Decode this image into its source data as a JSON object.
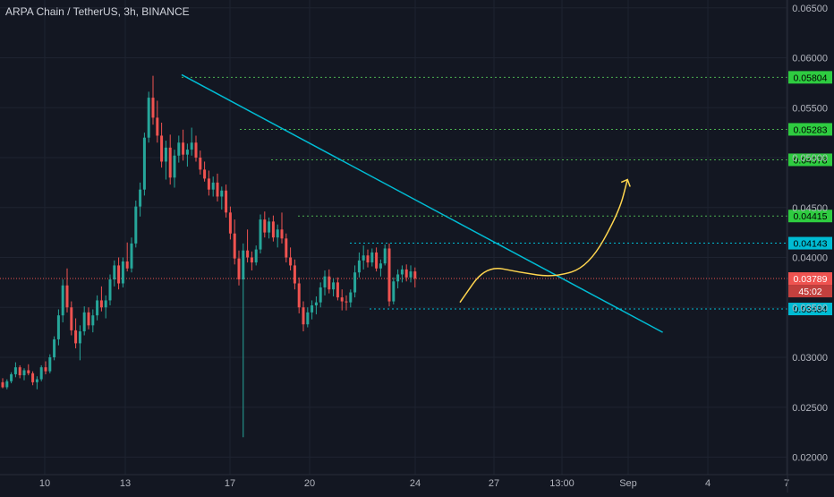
{
  "header": {
    "title": "ARPA Chain / TetherUS, 3h, BINANCE"
  },
  "colors": {
    "background": "#131722",
    "axis_text": "#b2b5be",
    "grid": "#1e2330",
    "up_candle": "#26a69a",
    "down_candle": "#ef5350",
    "trendline": "#00bcd4",
    "green_level": "#4caf50",
    "green_label": "#2ecc40",
    "cyan_level": "#00bcd4",
    "cyan_label": "#00bcd4",
    "current_price": "#ef5350",
    "projection_curve": "#ffd54f"
  },
  "chart_data": {
    "type": "candlestick",
    "title": "ARPA Chain / TetherUS, 3h, BINANCE",
    "symbol": "ARPA Chain / TetherUS",
    "interval": "3h",
    "exchange": "BINANCE",
    "y_axis_ticks": [
      "0.06500",
      "0.06000",
      "0.05500",
      "0.05000",
      "0.04500",
      "0.04000",
      "0.03500",
      "0.03000",
      "0.02500",
      "0.02000"
    ],
    "x_axis_ticks": [
      "10",
      "13",
      "17",
      "20",
      "24",
      "27",
      "13:00",
      "Sep",
      "4",
      "7"
    ],
    "ylim": [
      0.0196,
      0.0666
    ],
    "grid": true,
    "price_levels": [
      {
        "value": "0.05804",
        "style": "green"
      },
      {
        "value": "0.05283",
        "style": "green"
      },
      {
        "value": "0.04978",
        "style": "green"
      },
      {
        "value": "0.04415",
        "style": "green"
      },
      {
        "value": "0.04143",
        "style": "cyan"
      },
      {
        "value": "0.03484",
        "style": "cyan"
      }
    ],
    "current_price": {
      "value": "0.03789",
      "countdown": "45:02"
    },
    "trendline": {
      "from": {
        "bar": 0,
        "price": 0.0583
      },
      "to": {
        "bar": 112,
        "price": 0.0325
      }
    },
    "projection_path": [
      {
        "bar": 0,
        "price": 0.0355
      },
      {
        "bar": 6,
        "price": 0.0392
      },
      {
        "bar": 14,
        "price": 0.0385
      },
      {
        "bar": 22,
        "price": 0.038
      },
      {
        "bar": 30,
        "price": 0.0391
      },
      {
        "bar": 37,
        "price": 0.0445
      },
      {
        "bar": 39,
        "price": 0.0478
      }
    ],
    "ohlc": [
      [
        0.0275,
        0.0279,
        0.0269,
        0.027
      ],
      [
        0.027,
        0.0278,
        0.0268,
        0.0276
      ],
      [
        0.0276,
        0.0285,
        0.0274,
        0.0283
      ],
      [
        0.0283,
        0.0295,
        0.028,
        0.029
      ],
      [
        0.029,
        0.0292,
        0.0279,
        0.0282
      ],
      [
        0.0282,
        0.0289,
        0.0277,
        0.0287
      ],
      [
        0.0287,
        0.0293,
        0.0282,
        0.0284
      ],
      [
        0.0284,
        0.0286,
        0.0272,
        0.0275
      ],
      [
        0.0275,
        0.0281,
        0.0268,
        0.0278
      ],
      [
        0.0278,
        0.0292,
        0.0276,
        0.029
      ],
      [
        0.029,
        0.0296,
        0.0283,
        0.0286
      ],
      [
        0.0286,
        0.0303,
        0.0284,
        0.03
      ],
      [
        0.03,
        0.0321,
        0.0297,
        0.0318
      ],
      [
        0.0318,
        0.0348,
        0.0312,
        0.0342
      ],
      [
        0.0342,
        0.0378,
        0.0335,
        0.0372
      ],
      [
        0.0372,
        0.0389,
        0.0345,
        0.035
      ],
      [
        0.035,
        0.0356,
        0.0322,
        0.0327
      ],
      [
        0.0327,
        0.0339,
        0.0309,
        0.0314
      ],
      [
        0.0314,
        0.0332,
        0.0297,
        0.0326
      ],
      [
        0.0326,
        0.0351,
        0.0322,
        0.0345
      ],
      [
        0.0345,
        0.035,
        0.0328,
        0.0332
      ],
      [
        0.0332,
        0.0348,
        0.0325,
        0.0342
      ],
      [
        0.0342,
        0.0362,
        0.0337,
        0.0357
      ],
      [
        0.0357,
        0.0371,
        0.0346,
        0.035
      ],
      [
        0.035,
        0.0362,
        0.0339,
        0.0357
      ],
      [
        0.0357,
        0.0383,
        0.0352,
        0.0378
      ],
      [
        0.0378,
        0.0397,
        0.0371,
        0.0392
      ],
      [
        0.0392,
        0.04,
        0.0368,
        0.0374
      ],
      [
        0.0374,
        0.04,
        0.037,
        0.0396
      ],
      [
        0.0396,
        0.0415,
        0.0386,
        0.0389
      ],
      [
        0.0389,
        0.042,
        0.0385,
        0.0414
      ],
      [
        0.0414,
        0.0457,
        0.041,
        0.0451
      ],
      [
        0.0451,
        0.0475,
        0.0441,
        0.0468
      ],
      [
        0.0468,
        0.0525,
        0.0462,
        0.052
      ],
      [
        0.052,
        0.0566,
        0.0515,
        0.056
      ],
      [
        0.056,
        0.0582,
        0.0533,
        0.054
      ],
      [
        0.054,
        0.0557,
        0.0515,
        0.0522
      ],
      [
        0.0522,
        0.0535,
        0.049,
        0.0496
      ],
      [
        0.0496,
        0.0517,
        0.0478,
        0.051
      ],
      [
        0.051,
        0.0523,
        0.0473,
        0.048
      ],
      [
        0.048,
        0.0508,
        0.047,
        0.0502
      ],
      [
        0.0502,
        0.0522,
        0.0495,
        0.0515
      ],
      [
        0.0515,
        0.0528,
        0.0497,
        0.0503
      ],
      [
        0.0503,
        0.0514,
        0.0491,
        0.0508
      ],
      [
        0.0508,
        0.053,
        0.0502,
        0.0515
      ],
      [
        0.0515,
        0.0522,
        0.0496,
        0.05
      ],
      [
        0.05,
        0.0507,
        0.0483,
        0.0488
      ],
      [
        0.0488,
        0.0496,
        0.0476,
        0.0479
      ],
      [
        0.0479,
        0.0487,
        0.0462,
        0.0468
      ],
      [
        0.0468,
        0.0481,
        0.0461,
        0.0475
      ],
      [
        0.0475,
        0.0484,
        0.0456,
        0.0461
      ],
      [
        0.0461,
        0.0471,
        0.0448,
        0.0467
      ],
      [
        0.0467,
        0.0473,
        0.044,
        0.0445
      ],
      [
        0.0445,
        0.0451,
        0.0418,
        0.0424
      ],
      [
        0.0424,
        0.0438,
        0.0393,
        0.0399
      ],
      [
        0.0399,
        0.0407,
        0.0372,
        0.0378
      ],
      [
        0.0378,
        0.0414,
        0.022,
        0.0407
      ],
      [
        0.0407,
        0.0428,
        0.0395,
        0.04
      ],
      [
        0.04,
        0.0406,
        0.0387,
        0.0395
      ],
      [
        0.0395,
        0.0412,
        0.0392,
        0.0408
      ],
      [
        0.0408,
        0.0443,
        0.0404,
        0.0438
      ],
      [
        0.0438,
        0.0446,
        0.042,
        0.0425
      ],
      [
        0.0425,
        0.044,
        0.0419,
        0.0436
      ],
      [
        0.0436,
        0.0442,
        0.0416,
        0.042
      ],
      [
        0.042,
        0.0433,
        0.041,
        0.0428
      ],
      [
        0.0428,
        0.0445,
        0.0414,
        0.0419
      ],
      [
        0.0419,
        0.0424,
        0.0395,
        0.04
      ],
      [
        0.04,
        0.041,
        0.0387,
        0.0392
      ],
      [
        0.0392,
        0.0398,
        0.0368,
        0.0374
      ],
      [
        0.0374,
        0.038,
        0.0344,
        0.035
      ],
      [
        0.035,
        0.0356,
        0.0326,
        0.0333
      ],
      [
        0.0333,
        0.035,
        0.033,
        0.0345
      ],
      [
        0.0345,
        0.0357,
        0.0338,
        0.0352
      ],
      [
        0.0352,
        0.0361,
        0.0343,
        0.0355
      ],
      [
        0.0355,
        0.0375,
        0.035,
        0.037
      ],
      [
        0.037,
        0.0387,
        0.0362,
        0.0381
      ],
      [
        0.0381,
        0.0388,
        0.0364,
        0.0368
      ],
      [
        0.0368,
        0.0379,
        0.0361,
        0.0375
      ],
      [
        0.0375,
        0.038,
        0.0357,
        0.036
      ],
      [
        0.036,
        0.0368,
        0.0347,
        0.0356
      ],
      [
        0.0356,
        0.0362,
        0.0347,
        0.0355
      ],
      [
        0.0355,
        0.0368,
        0.035,
        0.0365
      ],
      [
        0.0365,
        0.0392,
        0.036,
        0.0385
      ],
      [
        0.0385,
        0.0405,
        0.038,
        0.0397
      ],
      [
        0.0397,
        0.0412,
        0.0388,
        0.0402
      ],
      [
        0.0402,
        0.0408,
        0.039,
        0.0395
      ],
      [
        0.0395,
        0.0409,
        0.0391,
        0.0405
      ],
      [
        0.0405,
        0.041,
        0.0386,
        0.0389
      ],
      [
        0.0389,
        0.0398,
        0.0381,
        0.0394
      ],
      [
        0.0394,
        0.0413,
        0.0392,
        0.0409
      ],
      [
        0.0409,
        0.0414,
        0.0351,
        0.0356
      ],
      [
        0.0356,
        0.038,
        0.0353,
        0.0376
      ],
      [
        0.0376,
        0.0388,
        0.0369,
        0.0383
      ],
      [
        0.0383,
        0.0392,
        0.0375,
        0.0388
      ],
      [
        0.0388,
        0.0393,
        0.0376,
        0.038
      ],
      [
        0.038,
        0.0392,
        0.0375,
        0.0386
      ],
      [
        0.0386,
        0.039,
        0.037,
        0.0379
      ]
    ]
  }
}
